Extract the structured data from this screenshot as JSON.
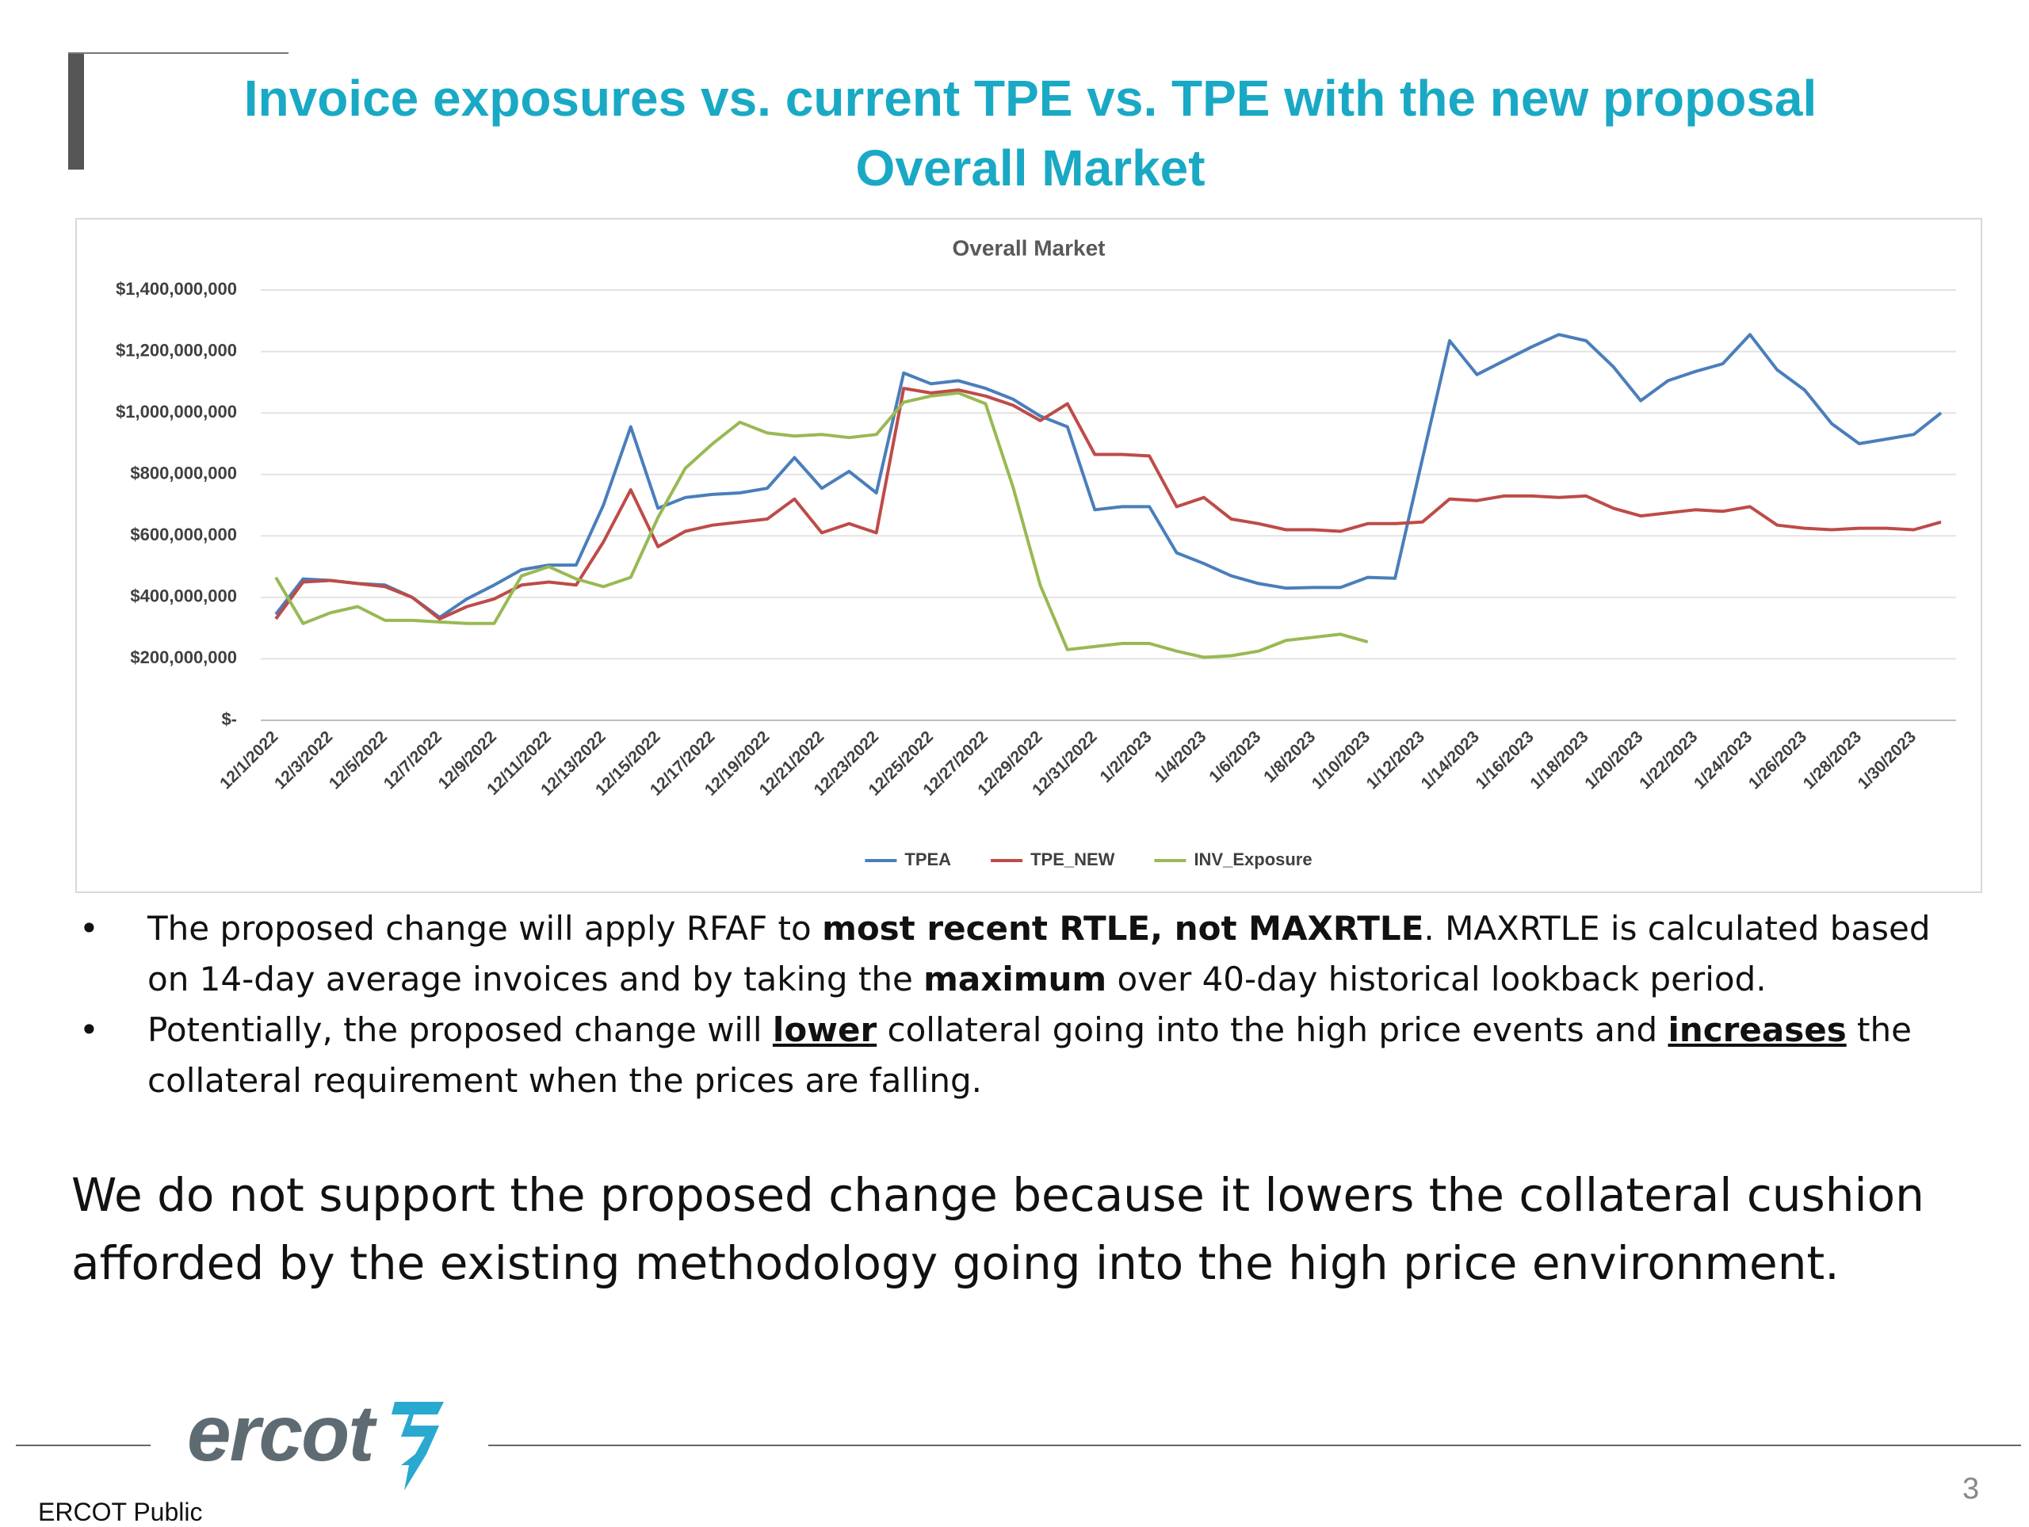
{
  "slide": {
    "title": [
      "Invoice exposures vs. current TPE vs. TPE with the new proposal",
      "Overall Market"
    ],
    "bullets": [
      [
        "The proposed change will apply RFAF to ",
        "most recent RTLE, not MAXRTLE",
        ". MAXRTLE is calculated based on 14-day average invoices and by taking the ",
        "maximum",
        " over 40-day historical lookback period."
      ],
      [
        "Potentially, the proposed change will ",
        "lower",
        " collateral going into the high price events and ",
        "increases",
        " the collateral requirement when the prices are falling."
      ]
    ],
    "conclusion": "We do not support the proposed change because it lowers the collateral cushion afforded by the existing methodology going into the high price environment.",
    "logo": "ercot",
    "footer": "ERCOT Public",
    "page_number": "3"
  },
  "chart_data": {
    "type": "line",
    "title": "Overall Market",
    "categories": [
      "12/1/2022",
      null,
      "12/3/2022",
      null,
      "12/5/2022",
      null,
      "12/7/2022",
      null,
      "12/9/2022",
      null,
      "12/11/2022",
      null,
      "12/13/2022",
      null,
      "12/15/2022",
      null,
      "12/17/2022",
      null,
      "12/19/2022",
      null,
      "12/21/2022",
      null,
      "12/23/2022",
      null,
      "12/25/2022",
      null,
      "12/27/2022",
      null,
      "12/29/2022",
      null,
      "12/31/2022",
      null,
      "1/2/2023",
      null,
      "1/4/2023",
      null,
      "1/6/2023",
      null,
      "1/8/2023",
      null,
      "1/10/2023",
      null,
      "1/12/2023",
      null,
      "1/14/2023",
      null,
      "1/16/2023",
      null,
      "1/18/2023",
      null,
      "1/20/2023",
      null,
      "1/22/2023",
      null,
      "1/24/2023",
      null,
      "1/26/2023",
      null,
      "1/28/2023",
      null,
      "1/30/2023",
      null
    ],
    "series": [
      {
        "name": "TPEA",
        "color": "#4a7ebb",
        "values": [
          345000000,
          460000000,
          455000000,
          445000000,
          440000000,
          400000000,
          335000000,
          395000000,
          440000000,
          490000000,
          505000000,
          505000000,
          700000000,
          955000000,
          690000000,
          725000000,
          735000000,
          740000000,
          755000000,
          855000000,
          755000000,
          810000000,
          740000000,
          1130000000,
          1095000000,
          1105000000,
          1080000000,
          1045000000,
          990000000,
          955000000,
          685000000,
          695000000,
          695000000,
          545000000,
          510000000,
          470000000,
          445000000,
          430000000,
          432000000,
          432000000,
          465000000,
          462000000,
          850000000,
          1235000000,
          1125000000,
          1170000000,
          1215000000,
          1255000000,
          1235000000,
          1150000000,
          1040000000,
          1105000000,
          1135000000,
          1160000000,
          1255000000,
          1140000000,
          1075000000,
          965000000,
          900000000,
          915000000,
          930000000,
          1000000000
        ]
      },
      {
        "name": "TPE_NEW",
        "color": "#be4b48",
        "values": [
          330000000,
          450000000,
          455000000,
          445000000,
          435000000,
          400000000,
          330000000,
          370000000,
          395000000,
          440000000,
          450000000,
          440000000,
          580000000,
          750000000,
          565000000,
          615000000,
          635000000,
          645000000,
          655000000,
          720000000,
          610000000,
          640000000,
          610000000,
          1080000000,
          1065000000,
          1075000000,
          1055000000,
          1025000000,
          975000000,
          1030000000,
          865000000,
          865000000,
          860000000,
          695000000,
          725000000,
          655000000,
          640000000,
          620000000,
          620000000,
          615000000,
          640000000,
          640000000,
          645000000,
          720000000,
          715000000,
          730000000,
          730000000,
          725000000,
          730000000,
          690000000,
          665000000,
          675000000,
          685000000,
          680000000,
          695000000,
          635000000,
          625000000,
          620000000,
          625000000,
          625000000,
          620000000,
          645000000
        ]
      },
      {
        "name": "INV_Exposure",
        "color": "#98b954",
        "values": [
          465000000,
          315000000,
          350000000,
          370000000,
          325000000,
          325000000,
          320000000,
          315000000,
          315000000,
          470000000,
          500000000,
          460000000,
          435000000,
          465000000,
          660000000,
          820000000,
          900000000,
          970000000,
          935000000,
          925000000,
          930000000,
          920000000,
          930000000,
          1035000000,
          1055000000,
          1065000000,
          1030000000,
          760000000,
          440000000,
          230000000,
          240000000,
          250000000,
          250000000,
          225000000,
          205000000,
          210000000,
          225000000,
          260000000,
          270000000,
          280000000,
          255000000,
          null,
          null,
          null,
          null,
          null,
          null,
          null,
          null,
          null,
          null,
          null,
          null,
          null,
          null,
          null,
          null,
          null,
          null,
          null,
          null,
          null
        ]
      }
    ],
    "ylim": [
      0,
      1400000000
    ],
    "yticks": [
      {
        "value": 0,
        "label": "$-"
      },
      {
        "value": 200000000,
        "label": "$200,000,000"
      },
      {
        "value": 400000000,
        "label": "$400,000,000"
      },
      {
        "value": 600000000,
        "label": "$600,000,000"
      },
      {
        "value": 800000000,
        "label": "$800,000,000"
      },
      {
        "value": 1000000000,
        "label": "$1,000,000,000"
      },
      {
        "value": 1200000000,
        "label": "$1,200,000,000"
      },
      {
        "value": 1400000000,
        "label": "$1,400,000,000"
      }
    ],
    "grid": true,
    "legend": "bottom"
  }
}
